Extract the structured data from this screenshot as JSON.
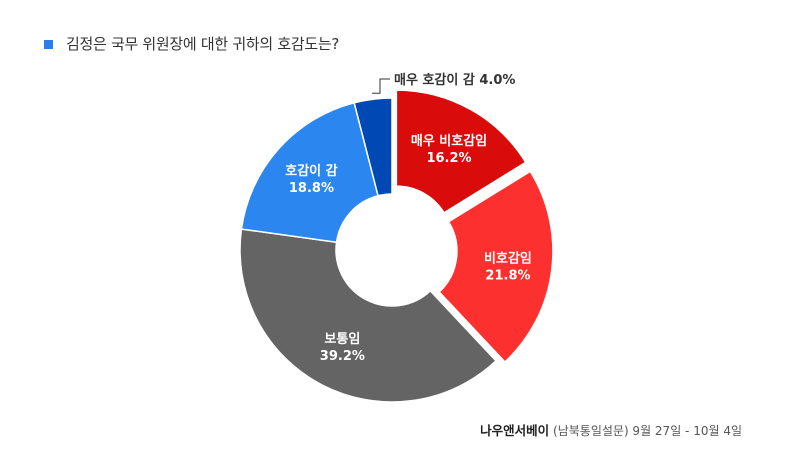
{
  "title": "김정은 국무 위원장에 대한 귀하의 호감도는?",
  "source": {
    "brand": "나우앤서베이",
    "detail": "(남북통일설문) 9월 27일 - 10월 4일"
  },
  "colors": {
    "legend_marker": "#2b7de9",
    "very_unfavorable": "#d90b0b",
    "unfavorable": "#fd3030",
    "neutral": "#646464",
    "favorable": "#2b86ef",
    "very_favorable": "#0048b3"
  },
  "chart_data": {
    "type": "pie",
    "donut": true,
    "title": "김정은 국무 위원장에 대한 귀하의 호감도는?",
    "slices": [
      {
        "label": "매우 비호감임",
        "value": 16.2,
        "display": "16.2%",
        "color": "#d90b0b",
        "exploded": true
      },
      {
        "label": "비호감임",
        "value": 21.8,
        "display": "21.8%",
        "color": "#fd3030",
        "exploded": true
      },
      {
        "label": "보통임",
        "value": 39.2,
        "display": "39.2%",
        "color": "#646464",
        "exploded": false
      },
      {
        "label": "호감이 감",
        "value": 18.8,
        "display": "18.8%",
        "color": "#2b86ef",
        "exploded": false
      },
      {
        "label": "매우 호감이 감",
        "value": 4.0,
        "display": "4.0%",
        "color": "#0048b3",
        "exploded": false
      }
    ]
  }
}
